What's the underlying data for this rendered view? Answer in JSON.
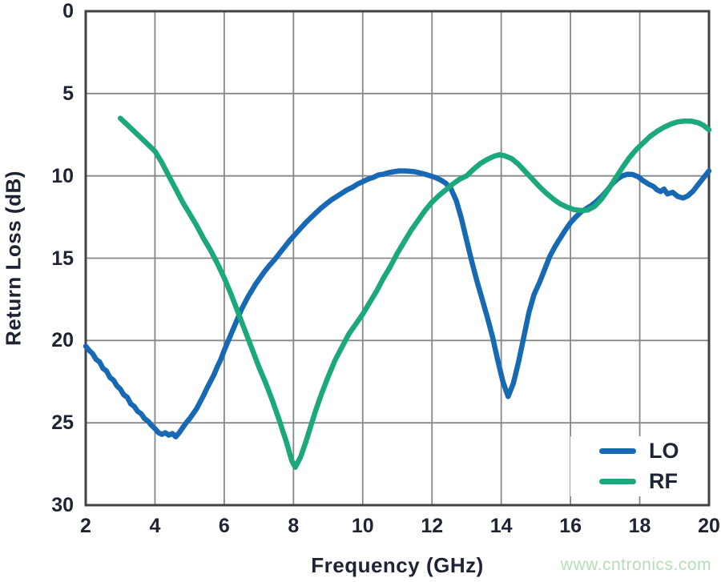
{
  "chart_data": {
    "type": "line",
    "title": "",
    "xlabel": "Frequency (GHz)",
    "ylabel": "Return Loss (dB)",
    "xlim": [
      2,
      20
    ],
    "ylim": [
      0,
      30
    ],
    "y_axis_inverted": true,
    "xticks": [
      2,
      4,
      6,
      8,
      10,
      12,
      14,
      16,
      18,
      20
    ],
    "yticks": [
      0,
      5,
      10,
      15,
      20,
      25,
      30
    ],
    "grid": true,
    "legend_position": "lower right",
    "series": [
      {
        "name": "LO",
        "color": "#1769b4",
        "points": [
          [
            2.0,
            20.35
          ],
          [
            2.1,
            20.6
          ],
          [
            2.2,
            20.8
          ],
          [
            2.3,
            21.15
          ],
          [
            2.4,
            21.3
          ],
          [
            2.5,
            21.7
          ],
          [
            2.6,
            21.85
          ],
          [
            2.7,
            22.25
          ],
          [
            2.8,
            22.4
          ],
          [
            2.9,
            22.75
          ],
          [
            3.0,
            22.95
          ],
          [
            3.1,
            23.3
          ],
          [
            3.2,
            23.45
          ],
          [
            3.3,
            23.85
          ],
          [
            3.4,
            24.0
          ],
          [
            3.5,
            24.3
          ],
          [
            3.6,
            24.45
          ],
          [
            3.7,
            24.75
          ],
          [
            3.8,
            24.9
          ],
          [
            3.9,
            25.15
          ],
          [
            4.0,
            25.35
          ],
          [
            4.1,
            25.6
          ],
          [
            4.2,
            25.7
          ],
          [
            4.3,
            25.6
          ],
          [
            4.4,
            25.75
          ],
          [
            4.5,
            25.65
          ],
          [
            4.6,
            25.85
          ],
          [
            4.7,
            25.6
          ],
          [
            4.8,
            25.3
          ],
          [
            4.9,
            25.0
          ],
          [
            5.0,
            24.75
          ],
          [
            5.1,
            24.45
          ],
          [
            5.2,
            24.15
          ],
          [
            5.3,
            23.75
          ],
          [
            5.4,
            23.35
          ],
          [
            5.5,
            22.9
          ],
          [
            5.6,
            22.5
          ],
          [
            5.7,
            22.1
          ],
          [
            5.8,
            21.6
          ],
          [
            5.9,
            21.15
          ],
          [
            6.0,
            20.6
          ],
          [
            6.1,
            20.1
          ],
          [
            6.2,
            19.6
          ],
          [
            6.3,
            19.1
          ],
          [
            6.4,
            18.6
          ],
          [
            6.5,
            18.1
          ],
          [
            6.6,
            17.7
          ],
          [
            6.7,
            17.3
          ],
          [
            6.8,
            16.95
          ],
          [
            6.9,
            16.6
          ],
          [
            7.0,
            16.3
          ],
          [
            7.15,
            15.85
          ],
          [
            7.3,
            15.45
          ],
          [
            7.45,
            15.1
          ],
          [
            7.6,
            14.7
          ],
          [
            7.75,
            14.3
          ],
          [
            7.9,
            13.9
          ],
          [
            8.05,
            13.55
          ],
          [
            8.2,
            13.2
          ],
          [
            8.35,
            12.85
          ],
          [
            8.5,
            12.55
          ],
          [
            8.65,
            12.25
          ],
          [
            8.8,
            11.95
          ],
          [
            8.95,
            11.7
          ],
          [
            9.1,
            11.45
          ],
          [
            9.25,
            11.25
          ],
          [
            9.4,
            11.05
          ],
          [
            9.55,
            10.85
          ],
          [
            9.7,
            10.7
          ],
          [
            9.85,
            10.5
          ],
          [
            10.0,
            10.35
          ],
          [
            10.15,
            10.2
          ],
          [
            10.3,
            10.1
          ],
          [
            10.45,
            9.95
          ],
          [
            10.6,
            9.9
          ],
          [
            10.75,
            9.8
          ],
          [
            10.9,
            9.75
          ],
          [
            11.05,
            9.7
          ],
          [
            11.2,
            9.7
          ],
          [
            11.35,
            9.72
          ],
          [
            11.5,
            9.75
          ],
          [
            11.65,
            9.82
          ],
          [
            11.8,
            9.9
          ],
          [
            11.95,
            10.0
          ],
          [
            12.1,
            10.1
          ],
          [
            12.25,
            10.25
          ],
          [
            12.4,
            10.45
          ],
          [
            12.55,
            10.8
          ],
          [
            12.7,
            11.5
          ],
          [
            12.85,
            12.6
          ],
          [
            13.0,
            13.9
          ],
          [
            13.15,
            15.2
          ],
          [
            13.3,
            16.4
          ],
          [
            13.45,
            17.5
          ],
          [
            13.6,
            18.6
          ],
          [
            13.75,
            19.8
          ],
          [
            13.9,
            21.2
          ],
          [
            14.05,
            22.5
          ],
          [
            14.2,
            23.4
          ],
          [
            14.35,
            22.6
          ],
          [
            14.5,
            21.3
          ],
          [
            14.65,
            19.8
          ],
          [
            14.8,
            18.3
          ],
          [
            14.95,
            17.2
          ],
          [
            15.1,
            16.5
          ],
          [
            15.25,
            15.7
          ],
          [
            15.4,
            14.9
          ],
          [
            15.55,
            14.3
          ],
          [
            15.7,
            13.8
          ],
          [
            15.85,
            13.3
          ],
          [
            16.0,
            12.85
          ],
          [
            16.15,
            12.5
          ],
          [
            16.3,
            12.2
          ],
          [
            16.45,
            12.0
          ],
          [
            16.6,
            11.8
          ],
          [
            16.75,
            11.55
          ],
          [
            16.9,
            11.25
          ],
          [
            17.05,
            10.9
          ],
          [
            17.2,
            10.5
          ],
          [
            17.35,
            10.2
          ],
          [
            17.5,
            10.0
          ],
          [
            17.65,
            9.9
          ],
          [
            17.8,
            9.92
          ],
          [
            17.95,
            10.05
          ],
          [
            18.1,
            10.3
          ],
          [
            18.25,
            10.5
          ],
          [
            18.4,
            10.65
          ],
          [
            18.5,
            10.85
          ],
          [
            18.6,
            10.95
          ],
          [
            18.7,
            10.8
          ],
          [
            18.8,
            11.1
          ],
          [
            18.95,
            11.0
          ],
          [
            19.1,
            11.25
          ],
          [
            19.25,
            11.35
          ],
          [
            19.4,
            11.2
          ],
          [
            19.55,
            10.9
          ],
          [
            19.7,
            10.5
          ],
          [
            19.85,
            10.1
          ],
          [
            20.0,
            9.7
          ]
        ]
      },
      {
        "name": "RF",
        "color": "#1ca87d",
        "points": [
          [
            3.0,
            6.5
          ],
          [
            3.2,
            6.9
          ],
          [
            3.4,
            7.3
          ],
          [
            3.6,
            7.7
          ],
          [
            3.8,
            8.1
          ],
          [
            4.0,
            8.5
          ],
          [
            4.2,
            9.2
          ],
          [
            4.4,
            10.0
          ],
          [
            4.6,
            10.8
          ],
          [
            4.8,
            11.6
          ],
          [
            5.0,
            12.3
          ],
          [
            5.2,
            13.0
          ],
          [
            5.4,
            13.8
          ],
          [
            5.6,
            14.5
          ],
          [
            5.8,
            15.3
          ],
          [
            6.0,
            16.2
          ],
          [
            6.2,
            17.2
          ],
          [
            6.4,
            18.3
          ],
          [
            6.6,
            19.4
          ],
          [
            6.8,
            20.5
          ],
          [
            7.0,
            21.6
          ],
          [
            7.2,
            22.6
          ],
          [
            7.4,
            23.7
          ],
          [
            7.6,
            24.9
          ],
          [
            7.8,
            26.2
          ],
          [
            7.95,
            27.3
          ],
          [
            8.05,
            27.7
          ],
          [
            8.2,
            27.1
          ],
          [
            8.35,
            26.2
          ],
          [
            8.5,
            25.2
          ],
          [
            8.65,
            24.2
          ],
          [
            8.8,
            23.3
          ],
          [
            9.0,
            22.2
          ],
          [
            9.2,
            21.2
          ],
          [
            9.4,
            20.4
          ],
          [
            9.6,
            19.6
          ],
          [
            9.8,
            19.0
          ],
          [
            10.0,
            18.4
          ],
          [
            10.2,
            17.7
          ],
          [
            10.4,
            17.0
          ],
          [
            10.6,
            16.2
          ],
          [
            10.8,
            15.5
          ],
          [
            11.0,
            14.7
          ],
          [
            11.2,
            14.0
          ],
          [
            11.4,
            13.3
          ],
          [
            11.6,
            12.7
          ],
          [
            11.8,
            12.1
          ],
          [
            12.0,
            11.6
          ],
          [
            12.2,
            11.2
          ],
          [
            12.4,
            10.85
          ],
          [
            12.6,
            10.5
          ],
          [
            12.8,
            10.2
          ],
          [
            13.0,
            10.0
          ],
          [
            13.2,
            9.6
          ],
          [
            13.4,
            9.25
          ],
          [
            13.6,
            9.0
          ],
          [
            13.8,
            8.8
          ],
          [
            13.95,
            8.72
          ],
          [
            14.1,
            8.78
          ],
          [
            14.3,
            8.95
          ],
          [
            14.5,
            9.3
          ],
          [
            14.7,
            9.75
          ],
          [
            14.9,
            10.2
          ],
          [
            15.1,
            10.65
          ],
          [
            15.3,
            11.05
          ],
          [
            15.5,
            11.4
          ],
          [
            15.7,
            11.7
          ],
          [
            15.9,
            11.9
          ],
          [
            16.1,
            12.05
          ],
          [
            16.3,
            12.1
          ],
          [
            16.5,
            12.08
          ],
          [
            16.7,
            11.85
          ],
          [
            16.9,
            11.4
          ],
          [
            17.1,
            10.8
          ],
          [
            17.3,
            10.15
          ],
          [
            17.5,
            9.5
          ],
          [
            17.7,
            8.9
          ],
          [
            17.9,
            8.4
          ],
          [
            18.1,
            8.0
          ],
          [
            18.3,
            7.6
          ],
          [
            18.5,
            7.3
          ],
          [
            18.7,
            7.05
          ],
          [
            18.9,
            6.85
          ],
          [
            19.1,
            6.72
          ],
          [
            19.3,
            6.67
          ],
          [
            19.5,
            6.68
          ],
          [
            19.7,
            6.78
          ],
          [
            19.85,
            6.95
          ],
          [
            20.0,
            7.2
          ]
        ]
      }
    ]
  },
  "legend": {
    "items": [
      {
        "label": "LO"
      },
      {
        "label": "RF"
      }
    ]
  },
  "watermark": {
    "text": "www.cntronics.com",
    "color": "#b5deb6"
  },
  "styles": {
    "axis_text_color": "#1e2433",
    "grid_color": "#878787",
    "frame_color": "#424242",
    "background": "#ffffff"
  }
}
